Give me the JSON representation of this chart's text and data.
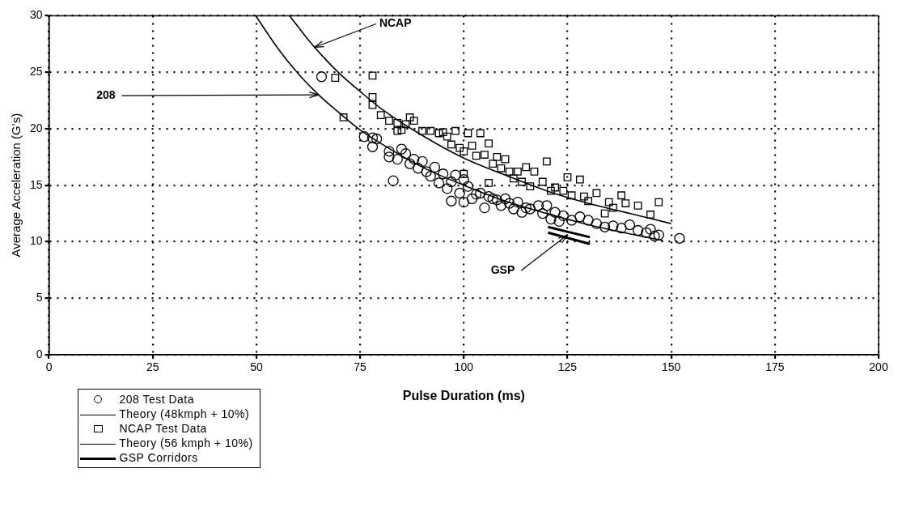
{
  "chart_data": {
    "type": "scatter",
    "xlabel": "Pulse Duration (ms)",
    "ylabel": "Average Acceleration (G's)",
    "xlim": [
      0,
      200
    ],
    "xticks": [
      0,
      25,
      50,
      75,
      100,
      125,
      150,
      175,
      200
    ],
    "ylim": [
      0,
      30
    ],
    "yticks": [
      0,
      5,
      10,
      15,
      20,
      25,
      30
    ],
    "grid": true,
    "legend": "bottom left",
    "annotations": [
      {
        "text": "NCAP",
        "x": 64,
        "y": 27.2
      },
      {
        "text": "208",
        "x": 65,
        "y": 23
      },
      {
        "text": "GSP",
        "x": 125,
        "y": 10.6
      }
    ],
    "series": [
      {
        "name": "208 Test Data",
        "marker": "circle",
        "color": "#000000",
        "x": [
          65.7,
          76,
          78,
          78,
          79,
          82,
          83,
          82,
          84,
          85,
          86,
          87,
          88,
          89,
          90,
          91,
          92,
          93,
          94,
          95,
          96,
          97,
          97,
          98,
          99,
          100,
          100,
          101,
          102,
          103,
          104,
          105,
          106,
          107,
          108,
          109,
          110,
          111,
          112,
          113,
          114,
          115,
          116,
          118,
          119,
          121,
          122,
          123,
          124,
          126,
          128,
          130,
          132,
          134,
          136,
          138,
          140,
          142,
          144,
          146,
          147,
          152,
          145,
          120
        ],
        "values": [
          24.6,
          19.3,
          18.4,
          19.2,
          19.1,
          18,
          15.4,
          17.5,
          17.3,
          18.2,
          17.8,
          16.9,
          17.3,
          16.5,
          17.1,
          16.2,
          15.8,
          16.6,
          15.2,
          16,
          14.7,
          13.6,
          15.3,
          15.9,
          14.3,
          13.5,
          15.5,
          14.9,
          13.8,
          14.2,
          14.3,
          13,
          14,
          13.8,
          13.7,
          13.2,
          13.8,
          13.4,
          12.9,
          13.5,
          12.6,
          13,
          12.9,
          13.2,
          12.5,
          12,
          12.6,
          11.8,
          12.3,
          11.9,
          12.2,
          11.9,
          11.6,
          11.3,
          11.4,
          11.2,
          11.5,
          11,
          10.8,
          10.5,
          10.6,
          10.3,
          11.1,
          13.2
        ]
      },
      {
        "name": "Theory (48kmph + 10%)",
        "type": "line",
        "marker": "none",
        "line_style": "solid",
        "color": "#000000",
        "x": [
          50,
          55,
          60,
          65,
          70,
          75,
          80,
          90,
          100,
          110,
          120,
          130,
          140,
          148
        ],
        "values": [
          29.9,
          27.2,
          24.9,
          23,
          21.4,
          19.9,
          18.7,
          16.6,
          15,
          13.6,
          12.5,
          11.5,
          10.7,
          10.1
        ]
      },
      {
        "name": "NCAP Test Data",
        "marker": "square",
        "color": "#000000",
        "x": [
          69,
          78,
          78,
          78,
          71,
          80,
          82,
          84,
          86,
          87,
          88,
          84,
          85,
          90,
          92,
          94,
          95,
          96,
          97,
          98,
          99,
          100,
          101,
          102,
          103,
          104,
          105,
          106,
          107,
          108,
          109,
          110,
          111,
          112,
          113,
          114,
          115,
          116,
          117,
          119,
          120,
          121,
          122,
          124,
          125,
          126,
          128,
          129,
          130,
          132,
          134,
          135,
          136,
          138,
          139,
          142,
          145,
          147,
          106,
          100
        ],
        "values": [
          24.5,
          24.7,
          22.8,
          22.1,
          21,
          21.2,
          20.7,
          20.5,
          20.4,
          21,
          20.7,
          19.8,
          19.9,
          19.8,
          19.8,
          19.6,
          19.7,
          19.3,
          18.6,
          19.8,
          18.3,
          18,
          19.6,
          18.5,
          17.6,
          19.6,
          17.7,
          18.7,
          16.9,
          17.5,
          16.5,
          17.3,
          16.2,
          15.6,
          16.2,
          15.3,
          16.6,
          14.9,
          16.2,
          15.3,
          17.1,
          14.5,
          14.8,
          14.5,
          15.7,
          14.1,
          15.5,
          14,
          13.6,
          14.3,
          12.5,
          13.5,
          13,
          14.1,
          13.4,
          13.2,
          12.4,
          13.5,
          15.2,
          16
        ]
      },
      {
        "name": "Theory (56 kmph + 10%)",
        "type": "line",
        "marker": "none",
        "line_style": "solid",
        "color": "#000000",
        "x": [
          58,
          62,
          66,
          70,
          75,
          80,
          90,
          100,
          110,
          120,
          130,
          140,
          150
        ],
        "values": [
          30,
          28.1,
          26.4,
          24.9,
          23.3,
          21.8,
          19.4,
          17.4,
          15.9,
          14.5,
          13.4,
          12.5,
          11.6
        ]
      },
      {
        "name": "GSP Corridors",
        "type": "line",
        "marker": "none",
        "line_style": "solid",
        "color": "#000000",
        "x": [
          120.3,
          130.4
        ],
        "values": [
          11.3,
          10.4
        ]
      },
      {
        "type": "line",
        "marker": "none",
        "line_style": "solid",
        "color": "#000000",
        "x": [
          120.3,
          130.4
        ],
        "values": [
          10.8,
          9.8
        ]
      }
    ]
  }
}
